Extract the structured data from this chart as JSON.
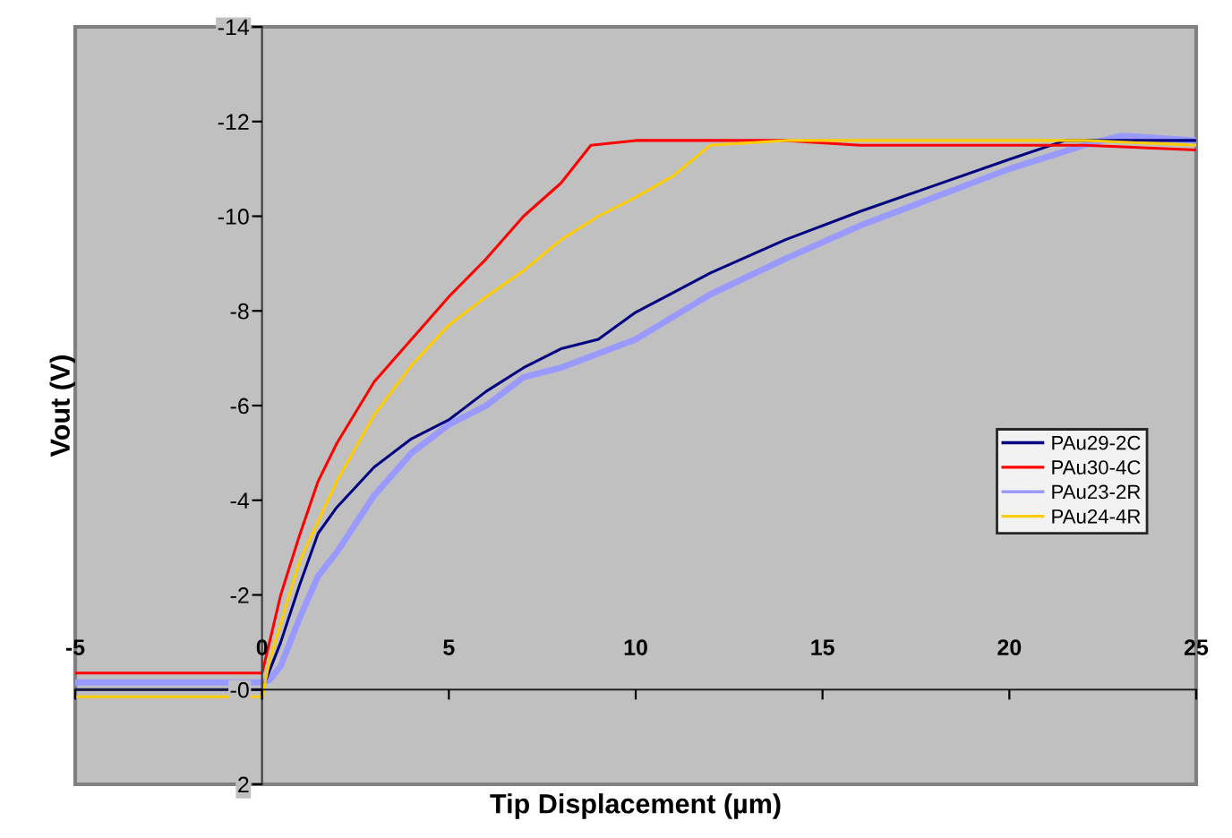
{
  "chart_data": {
    "type": "line",
    "xlabel": "Tip Displacement (µm)",
    "ylabel": "Vout (V)",
    "xlim": [
      -5,
      25
    ],
    "xticks": [
      -5,
      0,
      5,
      10,
      15,
      20,
      25
    ],
    "ylim": [
      2,
      -14
    ],
    "yticks": [
      -14,
      -12,
      -10,
      -8,
      -6,
      -4,
      -2,
      {
        "value": 0,
        "label": "-0"
      },
      2
    ],
    "grid": false,
    "legend": "right",
    "marker": "none",
    "line_style": "solid",
    "series": [
      {
        "name": "PAu29-2C",
        "color": "#000080",
        "x": [
          -5,
          -4,
          -3,
          -2,
          -1,
          0,
          0.2,
          0.5,
          1,
          1.5,
          2,
          3,
          4,
          5,
          6,
          7,
          8,
          9,
          10,
          12,
          14,
          16,
          18,
          20,
          21.5,
          23,
          25
        ],
        "values": [
          0.0,
          0.0,
          0.0,
          0.0,
          0.0,
          0.0,
          -0.4,
          -1.0,
          -2.2,
          -3.3,
          -3.85,
          -4.7,
          -5.3,
          -5.7,
          -6.3,
          -6.8,
          -7.2,
          -7.4,
          -7.97,
          -8.8,
          -9.5,
          -10.1,
          -10.65,
          -11.2,
          -11.6,
          -11.6,
          -11.6
        ]
      },
      {
        "name": "PAu30-4C",
        "color": "#ff0000",
        "x": [
          -5,
          -4,
          -3,
          -2,
          -1,
          0,
          0.2,
          0.5,
          1,
          1.5,
          2,
          3,
          4,
          5,
          6,
          7,
          8,
          8.8,
          10,
          12,
          14,
          16,
          18,
          20,
          22,
          25
        ],
        "values": [
          -0.35,
          -0.35,
          -0.35,
          -0.35,
          -0.35,
          -0.35,
          -1.0,
          -2.0,
          -3.25,
          -4.4,
          -5.2,
          -6.5,
          -7.4,
          -8.3,
          -9.1,
          -10.0,
          -10.7,
          -11.5,
          -11.6,
          -11.6,
          -11.6,
          -11.5,
          -11.5,
          -11.5,
          -11.5,
          -11.4
        ]
      },
      {
        "name": "PAu23-2R",
        "color": "#9999ff",
        "x": [
          -5,
          -4,
          -3,
          -2,
          -1,
          0,
          0.2,
          0.5,
          1,
          1.5,
          2,
          3,
          4,
          5,
          6,
          7,
          8,
          10,
          12,
          14,
          16,
          18,
          20,
          22,
          23,
          25
        ],
        "values": [
          -0.15,
          -0.15,
          -0.15,
          -0.15,
          -0.15,
          -0.15,
          -0.2,
          -0.5,
          -1.5,
          -2.4,
          -2.9,
          -4.1,
          -5.0,
          -5.6,
          -6.0,
          -6.6,
          -6.8,
          -7.4,
          -8.35,
          -9.1,
          -9.8,
          -10.4,
          -11.0,
          -11.5,
          -11.7,
          -11.6
        ]
      },
      {
        "name": "PAu24-4R",
        "color": "#ffcc00",
        "x": [
          -5,
          -4,
          -3,
          -2,
          -1,
          0,
          0.2,
          0.5,
          1,
          2,
          3,
          4,
          5,
          6,
          7,
          8,
          9,
          10,
          11,
          12,
          14,
          16,
          18,
          20,
          22,
          25
        ],
        "values": [
          0.15,
          0.15,
          0.15,
          0.15,
          0.15,
          0.15,
          -0.6,
          -1.4,
          -2.7,
          -4.4,
          -5.8,
          -6.85,
          -7.7,
          -8.3,
          -8.85,
          -9.5,
          -10.0,
          -10.4,
          -10.85,
          -11.5,
          -11.6,
          -11.6,
          -11.6,
          -11.6,
          -11.6,
          -11.5
        ]
      }
    ]
  }
}
